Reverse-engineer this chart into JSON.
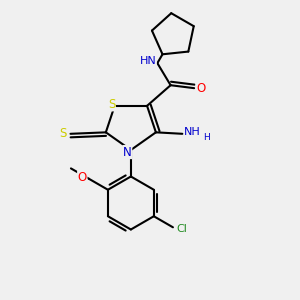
{
  "background_color": "#f0f0f0",
  "atom_colors": {
    "C": "#000000",
    "N": "#0000cd",
    "O": "#ff0000",
    "S": "#cccc00",
    "Cl": "#228b22",
    "H": "#000000"
  },
  "bond_color": "#000000",
  "bond_lw": 1.5,
  "figsize": [
    3.0,
    3.0
  ],
  "dpi": 100
}
